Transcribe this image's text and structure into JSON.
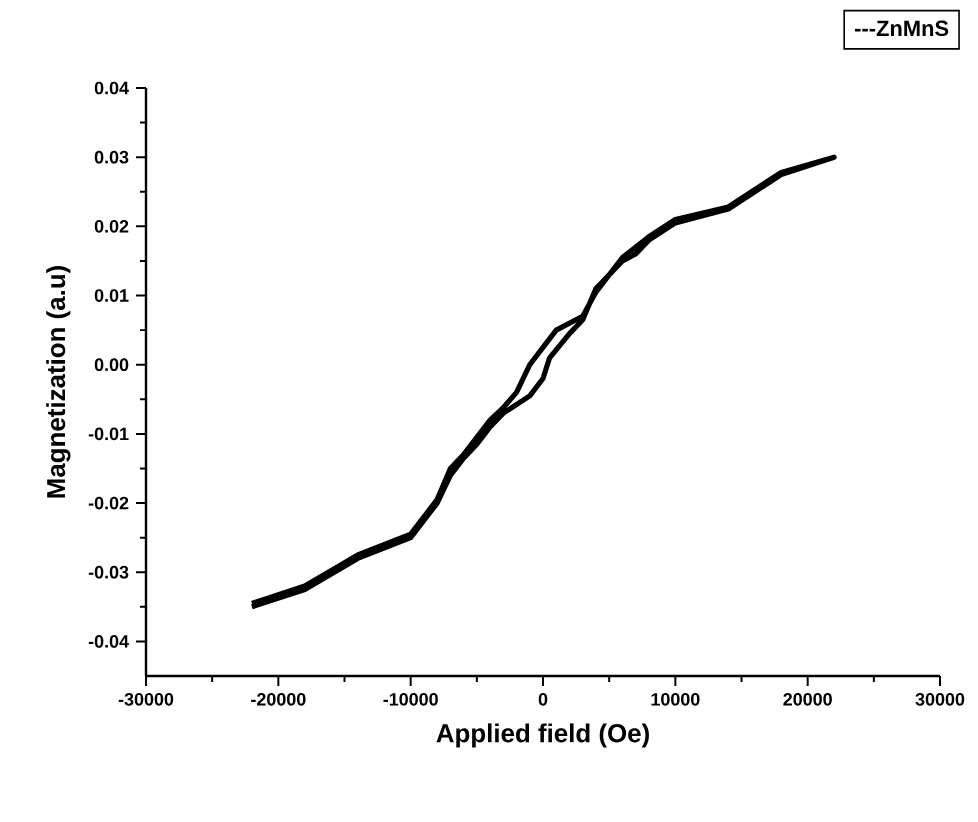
{
  "chart_data": {
    "type": "line",
    "xlabel": "Applied field (Oe)",
    "ylabel": "Magnetization (a.u)",
    "xlim": [
      -30000,
      30000
    ],
    "ylim": [
      -0.045,
      0.04
    ],
    "xticks": [
      -30000,
      -20000,
      -10000,
      0,
      10000,
      20000,
      30000
    ],
    "yticks": [
      {
        "value": -0.04,
        "label": "-0.04"
      },
      {
        "value": -0.03,
        "label": "-0.03"
      },
      {
        "value": -0.02,
        "label": "-0.02"
      },
      {
        "value": -0.01,
        "label": "-0.01"
      },
      {
        "value": 0,
        "label": "0.00"
      },
      {
        "value": 0.01,
        "label": "0.01"
      },
      {
        "value": 0.02,
        "label": "0.02"
      },
      {
        "value": 0.03,
        "label": "0.03"
      },
      {
        "value": 0.04,
        "label": "0.04"
      }
    ],
    "legend": "top right",
    "grid": false,
    "marker": "none",
    "line_style": "solid",
    "series": [
      {
        "name": "---ZnMnS",
        "color": "#000000",
        "x": [
          -22000,
          -18000,
          -14000,
          -10000,
          -8000,
          -7000,
          -6000,
          -5000,
          -4000,
          -3000,
          -1000,
          0,
          500,
          2000,
          3000,
          4000,
          6000,
          7000,
          8000,
          10000,
          14000,
          16000,
          18000,
          22000,
          18000,
          14000,
          10000,
          8000,
          6000,
          4000,
          3000,
          1000,
          0,
          -1000,
          -2000,
          -3000,
          -4000,
          -6000,
          -7000,
          -8000,
          -10000,
          -14000,
          -18000,
          -22000
        ],
        "values": [
          -0.035,
          -0.0325,
          -0.028,
          -0.025,
          -0.02,
          -0.016,
          -0.0135,
          -0.0115,
          -0.009,
          -0.007,
          -0.0045,
          -0.002,
          0.001,
          0.0045,
          0.0065,
          0.011,
          0.015,
          0.016,
          0.018,
          0.0205,
          0.0225,
          0.025,
          0.0275,
          0.03,
          0.0278,
          0.0228,
          0.021,
          0.0185,
          0.0155,
          0.0105,
          0.007,
          0.005,
          0.0025,
          0.0,
          -0.004,
          -0.0062,
          -0.008,
          -0.013,
          -0.015,
          -0.0195,
          -0.0245,
          -0.0275,
          -0.032,
          -0.0345
        ]
      }
    ]
  }
}
